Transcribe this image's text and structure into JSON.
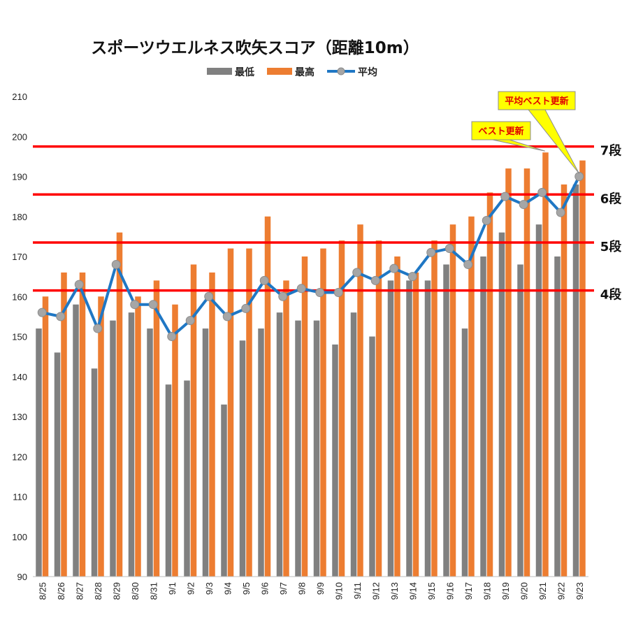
{
  "chart_data": {
    "type": "bar",
    "title": "スポーツウエルネス吹矢スコア（距離10m）",
    "ylim": [
      90,
      210
    ],
    "yticks": [
      "90",
      "100",
      "110",
      "120",
      "130",
      "140",
      "150",
      "160",
      "170",
      "180",
      "190",
      "200",
      "210"
    ],
    "categories": [
      "8/25",
      "8/26",
      "8/27",
      "8/28",
      "8/29",
      "8/30",
      "8/31",
      "9/1",
      "9/2",
      "9/3",
      "9/4",
      "9/5",
      "9/6",
      "9/7",
      "9/8",
      "9/9",
      "9/10",
      "9/11",
      "9/12",
      "9/13",
      "9/14",
      "9/15",
      "9/16",
      "9/17",
      "9/18",
      "9/19",
      "9/20",
      "9/21",
      "9/22",
      "9/23"
    ],
    "series": [
      {
        "name": "最低",
        "kind": "bar",
        "color": "#808080",
        "values": [
          152,
          146,
          158,
          142,
          154,
          156,
          152,
          138,
          139,
          152,
          133,
          149,
          152,
          156,
          154,
          154,
          148,
          156,
          150,
          164,
          164,
          164,
          168,
          152,
          170,
          176,
          168,
          178,
          170,
          188
        ]
      },
      {
        "name": "最高",
        "kind": "bar",
        "color": "#ed7d31",
        "values": [
          160,
          166,
          166,
          160,
          176,
          160,
          164,
          158,
          168,
          166,
          172,
          172,
          180,
          164,
          170,
          172,
          174,
          178,
          174,
          170,
          166,
          174,
          178,
          180,
          186,
          192,
          192,
          196,
          188,
          194
        ]
      },
      {
        "name": "平均",
        "kind": "line",
        "color": "#1f77c4",
        "values": [
          156,
          155,
          163,
          152,
          168,
          158,
          158,
          150,
          154,
          160,
          155,
          157,
          164,
          160,
          162,
          161,
          161,
          166,
          164,
          167,
          165,
          171,
          172,
          168,
          179,
          185,
          183,
          186,
          181,
          190
        ]
      }
    ],
    "thresholds": [
      {
        "label": "4段",
        "value": 161.5
      },
      {
        "label": "5段",
        "value": 173.5
      },
      {
        "label": "6段",
        "value": 185.5
      },
      {
        "label": "7段",
        "value": 197.5
      }
    ],
    "annotations": [
      {
        "text": "平均ベスト更新",
        "category": "9/23",
        "series": "平均"
      },
      {
        "text": "ベスト更新",
        "category": "9/21",
        "series": "最高"
      }
    ],
    "legend": "top",
    "grid": false
  },
  "colors": {
    "threshold_line": "#ff0000",
    "callout_fill": "#ffff00",
    "callout_text": "#e00000"
  }
}
